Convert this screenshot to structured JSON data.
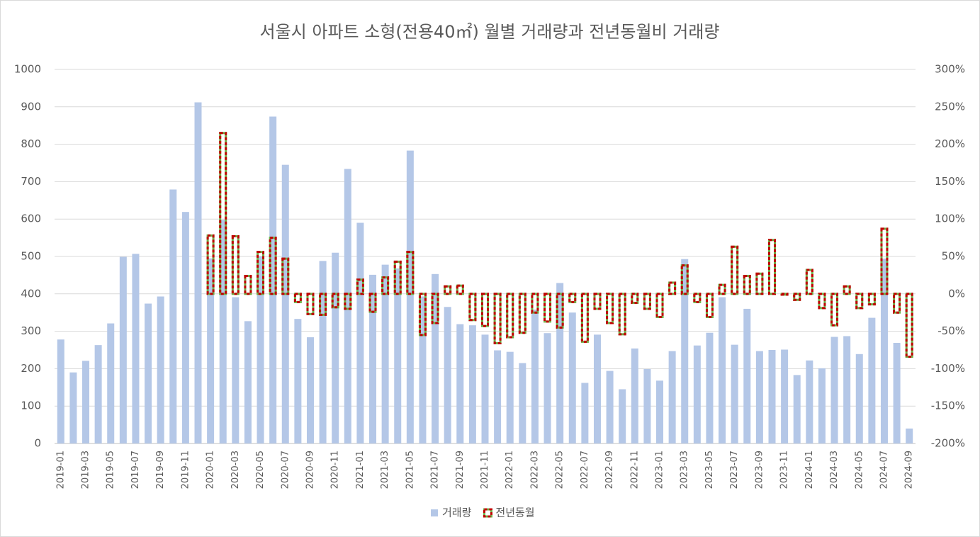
{
  "chart_data": {
    "type": "bar",
    "title": "서울시 아파트 소형(전용40㎡)  월별 거래량과 전년동월비 거래량",
    "categories": [
      "2019-01",
      null,
      "2019-03",
      null,
      "2019-05",
      null,
      "2019-07",
      null,
      "2019-09",
      null,
      "2019-11",
      null,
      "2020-01",
      null,
      "2020-03",
      null,
      "2020-05",
      null,
      "2020-07",
      null,
      "2020-09",
      null,
      "2020-11",
      null,
      "2021-01",
      null,
      "2021-03",
      null,
      "2021-05",
      null,
      "2021-07",
      null,
      "2021-09",
      null,
      "2021-11",
      null,
      "2022-01",
      null,
      "2022-03",
      null,
      "2022-05",
      null,
      "2022-07",
      null,
      "2022-09",
      null,
      "2022-11",
      null,
      "2023-01",
      null,
      "2023-03",
      null,
      "2023-05",
      null,
      "2023-07",
      null,
      "2023-09",
      null,
      "2023-11",
      null,
      "2024-01",
      null,
      "2024-03",
      null,
      "2024-05",
      null,
      "2024-07",
      null,
      "2024-09"
    ],
    "series": [
      {
        "name": "거래량",
        "color": "#b4c7e7",
        "values": [
          278,
          190,
          221,
          263,
          321,
          499,
          507,
          374,
          393,
          679,
          619,
          912,
          495,
          598,
          391,
          327,
          501,
          874,
          745,
          333,
          284,
          488,
          510,
          734,
          590,
          451,
          478,
          468,
          783,
          393,
          453,
          365,
          319,
          316,
          291,
          249,
          245,
          215,
          358,
          295,
          429,
          350,
          162,
          291,
          194,
          145,
          254,
          199,
          168,
          247,
          493,
          262,
          296,
          391,
          264,
          360,
          247,
          250,
          251,
          183,
          222,
          201,
          285,
          287,
          239,
          336,
          494,
          269,
          40
        ]
      },
      {
        "name": "전년동월",
        "color": "#c00000",
        "axis": "y2",
        "values": [
          null,
          null,
          null,
          null,
          null,
          null,
          null,
          null,
          null,
          null,
          null,
          null,
          78,
          215,
          77,
          24,
          56,
          75,
          47,
          -11,
          -27,
          -28,
          -18,
          -20,
          19,
          -24,
          22,
          43,
          56,
          -55,
          -39,
          10,
          11,
          -35,
          -43,
          -66,
          -58,
          -52,
          -25,
          -37,
          -45,
          -11,
          -64,
          -20,
          -39,
          -54,
          -12,
          -20,
          -31,
          15,
          38,
          -11,
          -31,
          12,
          63,
          24,
          27,
          72,
          -1,
          -8,
          32,
          -19,
          -42,
          10,
          -19,
          -14,
          87,
          -25,
          -84
        ]
      }
    ],
    "ylim": [
      0,
      1000
    ],
    "yticks": [
      0,
      100,
      200,
      300,
      400,
      500,
      600,
      700,
      800,
      900,
      1000
    ],
    "y2lim": [
      -200,
      300
    ],
    "y2ticks": [
      {
        "value": -200,
        "label": "-200%"
      },
      {
        "value": -150,
        "label": "-150%"
      },
      {
        "value": -100,
        "label": "-100%"
      },
      {
        "value": -50,
        "label": "-50%"
      },
      {
        "value": 0,
        "label": "0%"
      },
      {
        "value": 50,
        "label": "50%"
      },
      {
        "value": 100,
        "label": "100%"
      },
      {
        "value": 150,
        "label": "150%"
      },
      {
        "value": 200,
        "label": "200%"
      },
      {
        "value": 250,
        "label": "250%"
      },
      {
        "value": 300,
        "label": "300%"
      }
    ],
    "grid": true,
    "legend": "bottom"
  }
}
